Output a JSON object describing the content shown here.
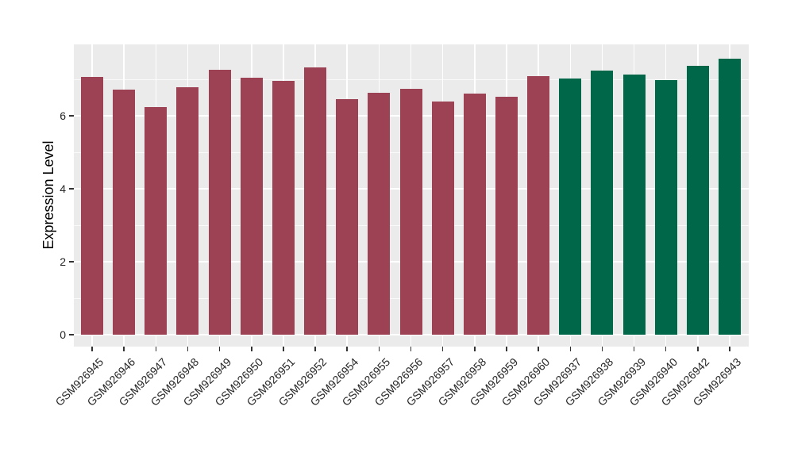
{
  "chart_data": {
    "type": "bar",
    "title": "",
    "xlabel": "",
    "ylabel": "Expression Level",
    "categories": [
      "GSM926945",
      "GSM926946",
      "GSM926947",
      "GSM926948",
      "GSM926949",
      "GSM926950",
      "GSM926951",
      "GSM926952",
      "GSM926954",
      "GSM926955",
      "GSM926956",
      "GSM926957",
      "GSM926958",
      "GSM926959",
      "GSM926960",
      "GSM926937",
      "GSM926938",
      "GSM926939",
      "GSM926940",
      "GSM926942",
      "GSM926943"
    ],
    "values": [
      7.07,
      6.71,
      6.24,
      6.79,
      7.27,
      7.04,
      6.96,
      7.33,
      6.46,
      6.64,
      6.74,
      6.4,
      6.6,
      6.53,
      7.09,
      7.03,
      7.24,
      7.12,
      6.98,
      7.37,
      7.57
    ],
    "bar_colors": [
      "#9D4154",
      "#9D4154",
      "#9D4154",
      "#9D4154",
      "#9D4154",
      "#9D4154",
      "#9D4154",
      "#9D4154",
      "#9D4154",
      "#9D4154",
      "#9D4154",
      "#9D4154",
      "#9D4154",
      "#9D4154",
      "#9D4154",
      "#006749",
      "#006749",
      "#006749",
      "#006749",
      "#006749",
      "#006749"
    ],
    "group_colors": {
      "maroon_group": "#9D4154",
      "green_group": "#006749"
    },
    "ylim": [
      0,
      8
    ],
    "yticks_major": [
      0,
      2,
      4,
      6
    ],
    "yticks_minor": [
      1,
      3,
      5,
      7
    ],
    "grid": "on",
    "legend": "none",
    "panel_background": "#EBEBEB",
    "grid_color": "#FFFFFF",
    "axis_text_color": "#262626"
  }
}
